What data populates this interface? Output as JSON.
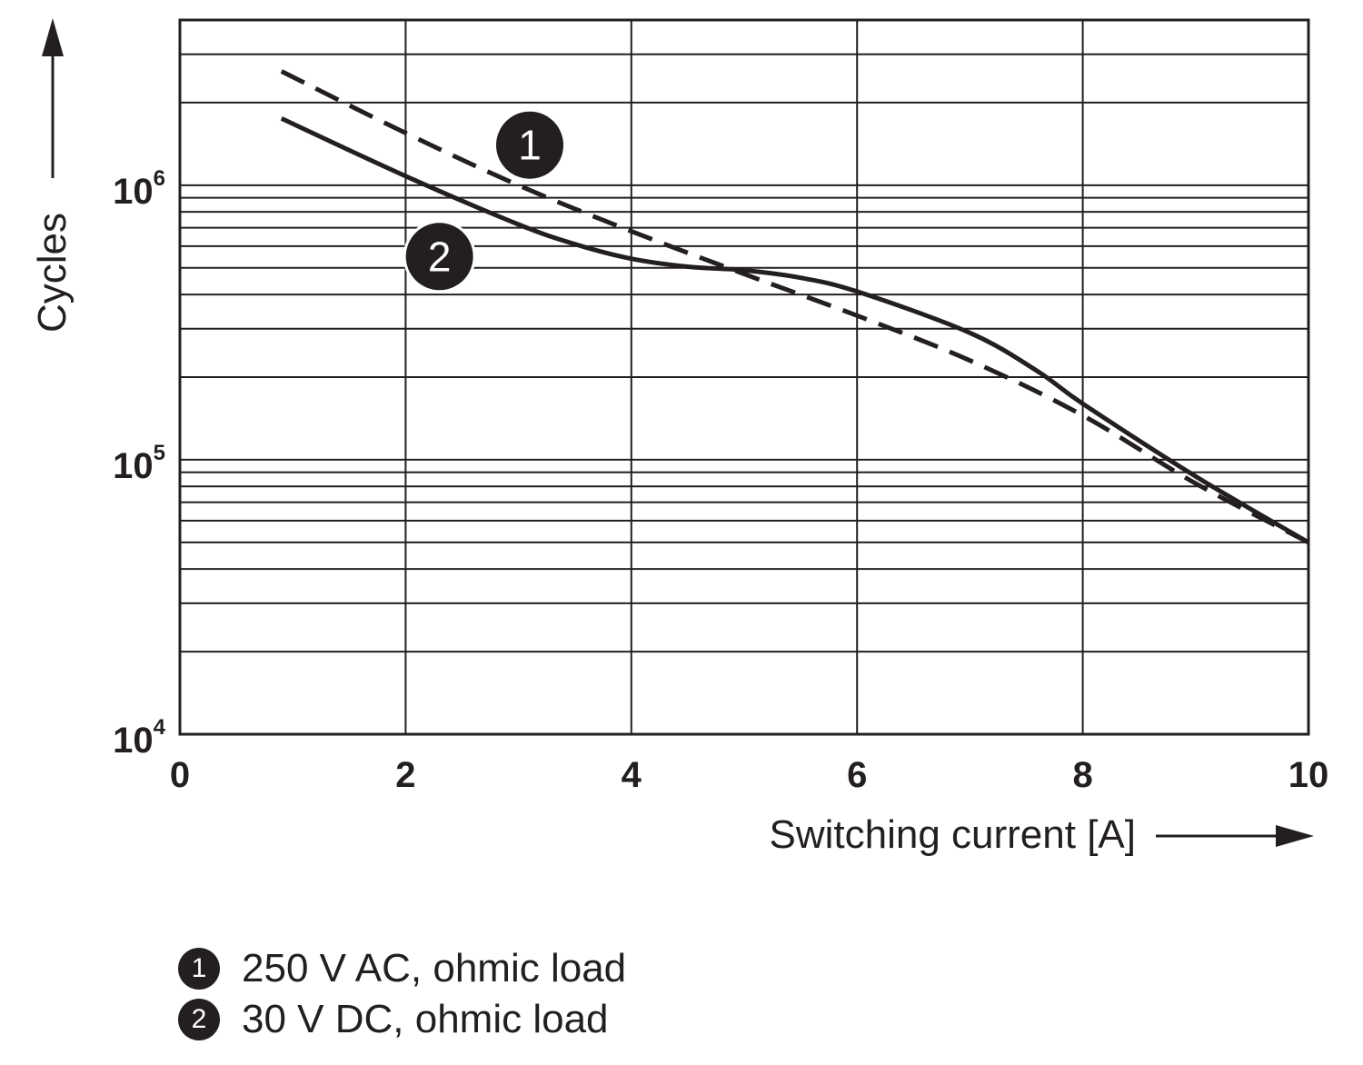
{
  "chart_data": {
    "type": "line",
    "title": "",
    "xlabel": "Switching current [A]",
    "ylabel": "Cycles",
    "xlim": [
      0,
      10
    ],
    "ylim": [
      10000,
      4000000
    ],
    "y_scale": "log",
    "grid": true,
    "x_ticks": [
      "0",
      "2",
      "4",
      "6",
      "8",
      "10"
    ],
    "y_ticks": [
      {
        "base": "10",
        "exp": "4",
        "value": 10000
      },
      {
        "base": "10",
        "exp": "5",
        "value": 100000
      },
      {
        "base": "10",
        "exp": "6",
        "value": 1000000
      }
    ],
    "legend_position": "bottom-left",
    "series": [
      {
        "name": "250 V AC, ohmic load",
        "marker": "1",
        "style": "dashed",
        "color": "#231f20",
        "points": [
          [
            0.9,
            2600000
          ],
          [
            2.0,
            1550000
          ],
          [
            3.0,
            1000000
          ],
          [
            4.0,
            680000
          ],
          [
            5.0,
            475000
          ],
          [
            6.0,
            335000
          ],
          [
            7.0,
            230000
          ],
          [
            8.0,
            145000
          ],
          [
            9.0,
            82000
          ],
          [
            10.0,
            50000
          ]
        ]
      },
      {
        "name": "30 V DC, ohmic load",
        "marker": "2",
        "style": "solid",
        "color": "#231f20",
        "points": [
          [
            0.9,
            1750000
          ],
          [
            2.0,
            1080000
          ],
          [
            3.0,
            720000
          ],
          [
            3.5,
            610000
          ],
          [
            4.0,
            540000
          ],
          [
            4.5,
            505000
          ],
          [
            5.0,
            490000
          ],
          [
            5.5,
            460000
          ],
          [
            6.0,
            410000
          ],
          [
            7.0,
            290000
          ],
          [
            7.6,
            210000
          ],
          [
            8.0,
            160000
          ],
          [
            9.0,
            87000
          ],
          [
            10.0,
            50000
          ]
        ]
      }
    ]
  }
}
